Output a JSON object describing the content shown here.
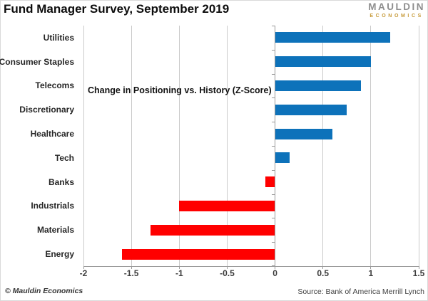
{
  "header": {
    "title": "Fund Manager Survey, September 2019",
    "logo": {
      "line1": "MAULDIN",
      "line2": "ECONOMICS"
    }
  },
  "chart_data": {
    "type": "bar",
    "orientation": "horizontal",
    "annotation": "Change in Positioning vs. History (Z-Score)",
    "categories": [
      "Utilities",
      "Consumer Staples",
      "Telecoms",
      "Discretionary",
      "Healthcare",
      "Tech",
      "Banks",
      "Industrials",
      "Materials",
      "Energy"
    ],
    "values": [
      1.2,
      1.0,
      0.9,
      0.75,
      0.6,
      0.15,
      -0.1,
      -1.0,
      -1.3,
      -1.6
    ],
    "xlim": [
      -2,
      1.5
    ],
    "xtick_step": 0.5,
    "xtick_labels": [
      "-2",
      "-1.5",
      "-1",
      "-0.5",
      "0",
      "0.5",
      "1",
      "1.5"
    ],
    "grid": true,
    "positive_color": "#0d72ba",
    "negative_color": "#ff0000"
  },
  "footer": {
    "copyright": "© Mauldin Economics",
    "source": "Source: Bank of America Merrill Lynch"
  }
}
